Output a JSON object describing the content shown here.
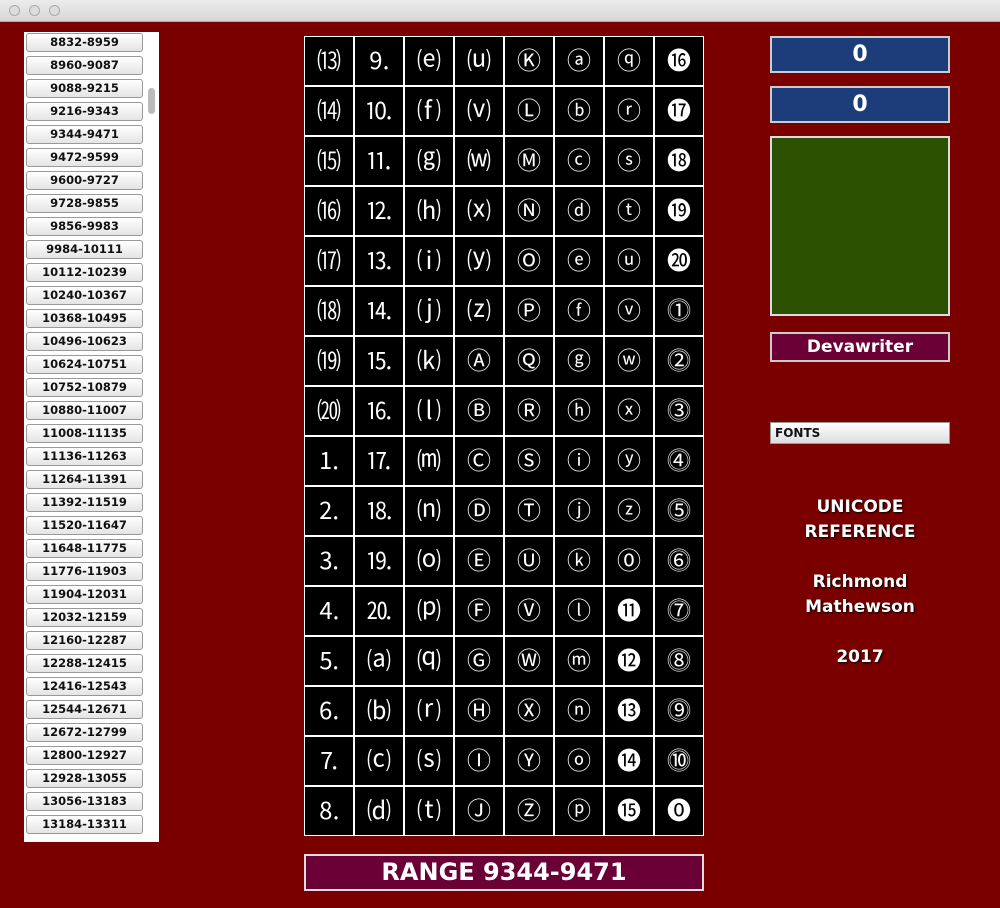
{
  "ranges": [
    "8832-8959",
    "8960-9087",
    "9088-9215",
    "9216-9343",
    "9344-9471",
    "9472-9599",
    "9600-9727",
    "9728-9855",
    "9856-9983",
    "9984-10111",
    "10112-10239",
    "10240-10367",
    "10368-10495",
    "10496-10623",
    "10624-10751",
    "10752-10879",
    "10880-11007",
    "11008-11135",
    "11136-11263",
    "11264-11391",
    "11392-11519",
    "11520-11647",
    "11648-11775",
    "11776-11903",
    "11904-12031",
    "12032-12159",
    "12160-12287",
    "12288-12415",
    "12416-12543",
    "12544-12671",
    "12672-12799",
    "12800-12927",
    "12928-13055",
    "13056-13183",
    "13184-13311"
  ],
  "grid": {
    "rows": [
      [
        "⒀",
        "⒐",
        "⒠",
        "⒰",
        "Ⓚ",
        "ⓐ",
        "ⓠ",
        "⓰"
      ],
      [
        "⒁",
        "⒑",
        "⒡",
        "⒱",
        "Ⓛ",
        "ⓑ",
        "ⓡ",
        "⓱"
      ],
      [
        "⒂",
        "⒒",
        "⒢",
        "⒲",
        "Ⓜ",
        "ⓒ",
        "ⓢ",
        "⓲"
      ],
      [
        "⒃",
        "⒓",
        "⒣",
        "⒳",
        "Ⓝ",
        "ⓓ",
        "ⓣ",
        "⓳"
      ],
      [
        "⒄",
        "⒔",
        "⒤",
        "⒴",
        "Ⓞ",
        "ⓔ",
        "ⓤ",
        "⓴"
      ],
      [
        "⒅",
        "⒕",
        "⒥",
        "⒵",
        "Ⓟ",
        "ⓕ",
        "ⓥ",
        "⓵"
      ],
      [
        "⒆",
        "⒖",
        "⒦",
        "Ⓐ",
        "Ⓠ",
        "ⓖ",
        "ⓦ",
        "⓶"
      ],
      [
        "⒇",
        "⒗",
        "⒧",
        "Ⓑ",
        "Ⓡ",
        "ⓗ",
        "ⓧ",
        "⓷"
      ],
      [
        "⒈",
        "⒘",
        "⒨",
        "Ⓒ",
        "Ⓢ",
        "ⓘ",
        "ⓨ",
        "⓸"
      ],
      [
        "⒉",
        "⒙",
        "⒩",
        "Ⓓ",
        "Ⓣ",
        "ⓙ",
        "ⓩ",
        "⓹"
      ],
      [
        "⒊",
        "⒚",
        "⒪",
        "Ⓔ",
        "Ⓤ",
        "ⓚ",
        "⓪",
        "⓺"
      ],
      [
        "⒋",
        "⒛",
        "⒫",
        "Ⓕ",
        "Ⓥ",
        "ⓛ",
        "⓫",
        "⓻"
      ],
      [
        "⒌",
        "⒜",
        "⒬",
        "Ⓖ",
        "Ⓦ",
        "ⓜ",
        "⓬",
        "⓼"
      ],
      [
        "⒍",
        "⒝",
        "⒭",
        "Ⓗ",
        "Ⓧ",
        "ⓝ",
        "⓭",
        "⓽"
      ],
      [
        "⒎",
        "⒞",
        "⒮",
        "Ⓘ",
        "Ⓨ",
        "ⓞ",
        "⓮",
        "⓾"
      ],
      [
        "⒏",
        "⒟",
        "⒯",
        "Ⓙ",
        "Ⓩ",
        "ⓟ",
        "⓯",
        "⓿"
      ]
    ]
  },
  "range_label": "RANGE 9344-9471",
  "counters": [
    "0",
    "0"
  ],
  "devawriter_button": "Devawriter",
  "fonts_menu": "FONTS",
  "credits": [
    "UNICODE",
    "REFERENCE",
    "Richmond",
    "Mathewson",
    "2017"
  ]
}
